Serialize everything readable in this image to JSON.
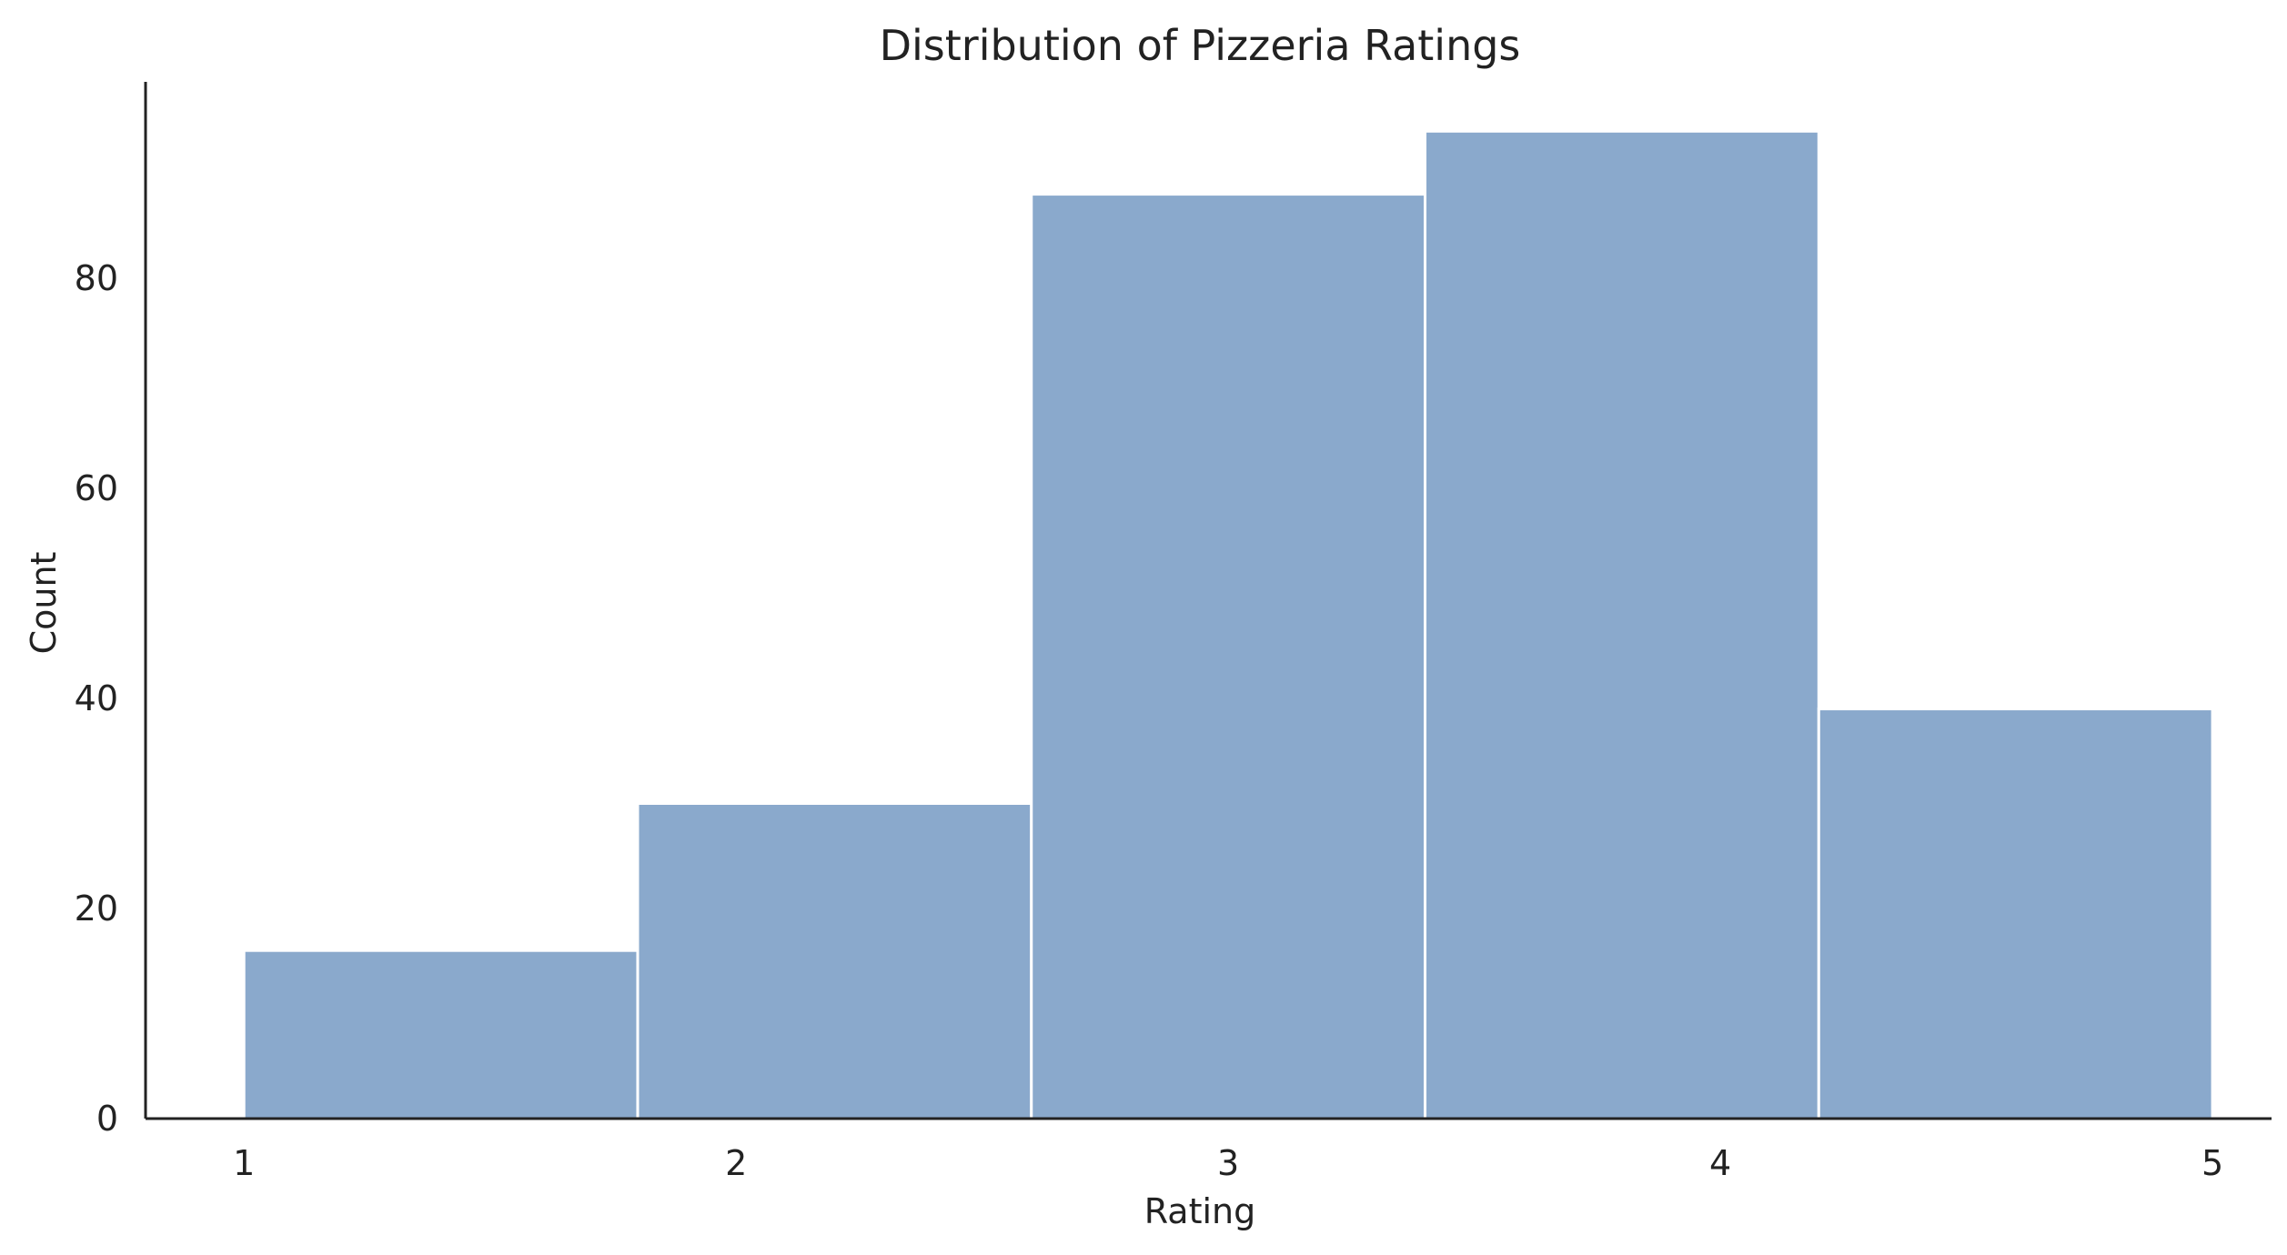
{
  "chart_data": {
    "type": "bar",
    "title": "Distribution of Pizzeria Ratings",
    "xlabel": "Rating",
    "ylabel": "Count",
    "bins": [
      {
        "start": 1.0,
        "end": 1.8,
        "count": 16
      },
      {
        "start": 1.8,
        "end": 2.6,
        "count": 30
      },
      {
        "start": 2.6,
        "end": 3.4,
        "count": 88
      },
      {
        "start": 3.4,
        "end": 4.2,
        "count": 94
      },
      {
        "start": 4.2,
        "end": 5.0,
        "count": 39
      }
    ],
    "xlim": [
      0.8,
      5.12
    ],
    "ylim": [
      0,
      98.7
    ],
    "xticks": [
      1,
      2,
      3,
      4,
      5
    ],
    "yticks": [
      0,
      20,
      40,
      60,
      80
    ],
    "bar_color": "#8aa9cc",
    "bar_edge_color": "#ffffff",
    "axis_color": "#222222",
    "grid": false,
    "legend": "none"
  }
}
